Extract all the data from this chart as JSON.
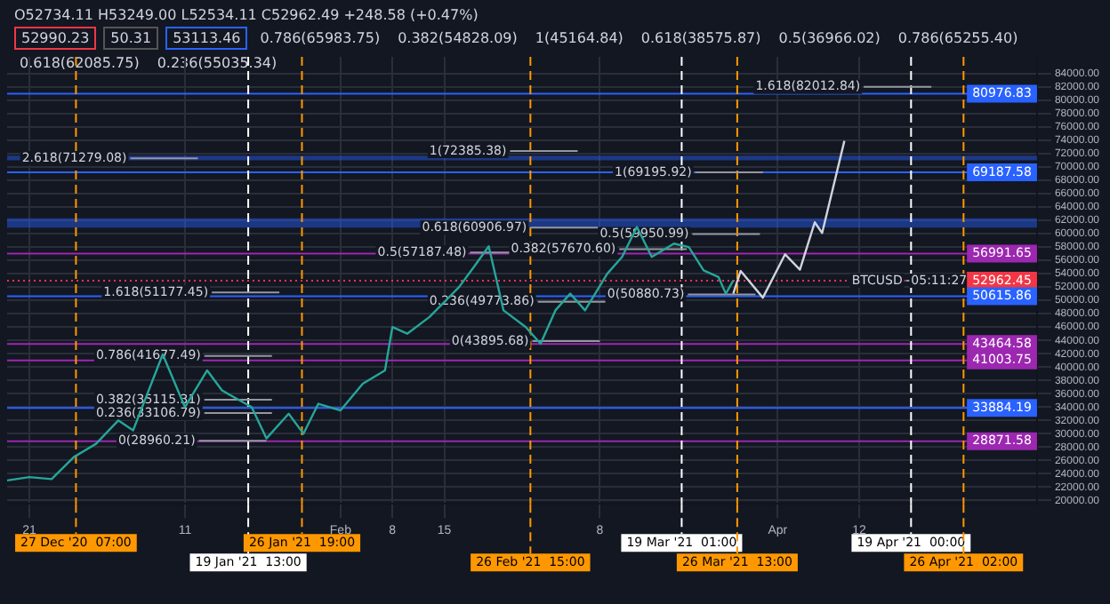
{
  "chart_data": {
    "type": "line",
    "subtitle": "O52734.11 H53249.00 L52534.11 C52962.49 +248.58 (+0.47%)",
    "xlim": [
      "2020-12-18",
      "2021-05-06"
    ],
    "xticks": [
      {
        "value": "2020-12-21",
        "label": "21"
      },
      {
        "value": "2021-01-11",
        "label": "11"
      },
      {
        "value": "2021-02-01",
        "label": "Feb"
      },
      {
        "value": "2021-02-08",
        "label": "8"
      },
      {
        "value": "2021-02-15",
        "label": "15"
      },
      {
        "value": "2021-03-08",
        "label": "8"
      },
      {
        "value": "2021-04-01",
        "label": "Apr"
      },
      {
        "value": "2021-04-12",
        "label": "12"
      }
    ],
    "ylim": [
      19500,
      86500
    ],
    "yticks": [
      {
        "value": 20000,
        "label": "20000.00"
      },
      {
        "value": 22000,
        "label": "22000.00"
      },
      {
        "value": 24000,
        "label": "24000.00"
      },
      {
        "value": 26000,
        "label": "26000.00"
      },
      {
        "value": 28000,
        "label": "28000.00"
      },
      {
        "value": 30000,
        "label": "30000.00"
      },
      {
        "value": 32000,
        "label": "32000.00"
      },
      {
        "value": 34000,
        "label": "34000.00"
      },
      {
        "value": 36000,
        "label": "36000.00"
      },
      {
        "value": 38000,
        "label": "38000.00"
      },
      {
        "value": 40000,
        "label": "40000.00"
      },
      {
        "value": 42000,
        "label": "42000.00"
      },
      {
        "value": 44000,
        "label": "44000.00"
      },
      {
        "value": 46000,
        "label": "46000.00"
      },
      {
        "value": 48000,
        "label": "48000.00"
      },
      {
        "value": 50000,
        "label": "50000.00"
      },
      {
        "value": 52000,
        "label": "52000.00"
      },
      {
        "value": 54000,
        "label": "54000.00"
      },
      {
        "value": 56000,
        "label": "56000.00"
      },
      {
        "value": 58000,
        "label": "58000.00"
      },
      {
        "value": 60000,
        "label": "60000.00"
      },
      {
        "value": 62000,
        "label": "62000.00"
      },
      {
        "value": 64000,
        "label": "64000.00"
      },
      {
        "value": 66000,
        "label": "66000.00"
      },
      {
        "value": 68000,
        "label": "68000.00"
      },
      {
        "value": 70000,
        "label": "70000.00"
      },
      {
        "value": 72000,
        "label": "72000.00"
      },
      {
        "value": 74000,
        "label": "74000.00"
      },
      {
        "value": 76000,
        "label": "76000.00"
      },
      {
        "value": 78000,
        "label": "78000.00"
      },
      {
        "value": 80000,
        "label": "80000.00"
      },
      {
        "value": 82000,
        "label": "82000.00"
      },
      {
        "value": 84000,
        "label": "84000.00"
      }
    ],
    "grid": true,
    "legend": false,
    "marker": "none",
    "series": [
      {
        "color": "#26a69a",
        "x": [
          "2020-12-18",
          "2020-12-21",
          "2020-12-24",
          "2020-12-27",
          "2020-12-30",
          "2021-01-02",
          "2021-01-04",
          "2021-01-08",
          "2021-01-11",
          "2021-01-14",
          "2021-01-16",
          "2021-01-20",
          "2021-01-22",
          "2021-01-25",
          "2021-01-27",
          "2021-01-29",
          "2021-02-01",
          "2021-02-04",
          "2021-02-07",
          "2021-02-08",
          "2021-02-10",
          "2021-02-13",
          "2021-02-17",
          "2021-02-19",
          "2021-02-21",
          "2021-02-23",
          "2021-02-26",
          "2021-02-28",
          "2021-03-02",
          "2021-03-04",
          "2021-03-06",
          "2021-03-09",
          "2021-03-11",
          "2021-03-13",
          "2021-03-15",
          "2021-03-18",
          "2021-03-20",
          "2021-03-22",
          "2021-03-24",
          "2021-03-25",
          "2021-03-26"
        ],
        "values": [
          23000,
          23500,
          23200,
          26500,
          28500,
          32000,
          30500,
          41900,
          34000,
          39500,
          36500,
          34000,
          29300,
          33000,
          30000,
          34500,
          33500,
          37500,
          39500,
          46000,
          45000,
          47500,
          52000,
          55000,
          58100,
          48500,
          46000,
          43500,
          48500,
          51000,
          48500,
          54000,
          56500,
          61000,
          56500,
          58500,
          58000,
          54500,
          53500,
          51000,
          52962.45
        ]
      },
      {
        "color": "#d1d4dc",
        "x": [
          "2021-03-26",
          "2021-03-27",
          "2021-03-30",
          "2021-04-02",
          "2021-04-04",
          "2021-04-06",
          "2021-04-07",
          "2021-04-10"
        ],
        "values": [
          51000,
          54400,
          50400,
          56900,
          54600,
          61700,
          60100,
          73900
        ]
      }
    ],
    "ref_lines": [
      {
        "axis": "y",
        "value": 80976.83,
        "label": "80976.83",
        "color": "#2962ff",
        "line_style": "solid"
      },
      {
        "axis": "y",
        "value": 69187.58,
        "label": "69187.58",
        "color": "#2962ff",
        "line_style": "solid"
      },
      {
        "axis": "y",
        "value": 56991.65,
        "label": "56991.65",
        "color": "#9c27b0",
        "line_style": "solid"
      },
      {
        "axis": "y",
        "value": 52962.45,
        "label": "52962.45",
        "color": "#f23645",
        "line_style": "dotted"
      },
      {
        "axis": "y",
        "value": 50615.86,
        "label": "50615.86",
        "color": "#2962ff",
        "line_style": "solid"
      },
      {
        "axis": "y",
        "value": 43464.58,
        "label": "43464.58",
        "color": "#9c27b0",
        "line_style": "solid"
      },
      {
        "axis": "y",
        "value": 41003.75,
        "label": "41003.75",
        "color": "#9c27b0",
        "line_style": "solid"
      },
      {
        "axis": "y",
        "value": 33884.19,
        "label": "33884.19",
        "color": "#2962ff",
        "line_style": "solid"
      },
      {
        "axis": "y",
        "value": 28871.58,
        "label": "28871.58",
        "color": "#9c27b0",
        "line_style": "solid"
      },
      {
        "axis": "x",
        "value": "2020-12-27T07:00",
        "label": "27 Dec '20  07:00",
        "color": "#ff9800",
        "line_style": "dashed"
      },
      {
        "axis": "x",
        "value": "2021-01-19T13:00",
        "label": "19 Jan '21  13:00",
        "color": "#ffffff",
        "line_style": "dashed"
      },
      {
        "axis": "x",
        "value": "2021-01-26T19:00",
        "label": "26 Jan '21  19:00",
        "color": "#ff9800",
        "line_style": "dashed"
      },
      {
        "axis": "x",
        "value": "2021-02-26T15:00",
        "label": "26 Feb '21  15:00",
        "color": "#ff9800",
        "line_style": "dashed"
      },
      {
        "axis": "x",
        "value": "2021-03-19T01:00",
        "label": "19 Mar '21  01:00",
        "color": "#ffffff",
        "line_style": "dashed"
      },
      {
        "axis": "x",
        "value": "2021-03-26T13:00",
        "label": "26 Mar '21  13:00",
        "color": "#ff9800",
        "line_style": "dashed"
      },
      {
        "axis": "x",
        "value": "2021-04-19T00:00",
        "label": "19 Apr '21  00:00",
        "color": "#ffffff",
        "line_style": "dashed"
      },
      {
        "axis": "x",
        "value": "2021-04-26T02:00",
        "label": "26 Apr '21  02:00",
        "color": "#ff9800",
        "line_style": "dashed"
      }
    ],
    "bands": [
      {
        "axis": "y",
        "from": 71000,
        "to": 71700,
        "color": "#2962ff"
      },
      {
        "axis": "y",
        "from": 60900,
        "to": 62300,
        "color": "#2962ff"
      }
    ],
    "annotations": [
      "52990.23",
      "50.31",
      "53113.46",
      {
        "text": "1.618(82012.84)",
        "x": "2021-03-29",
        "y": 82012.84
      },
      {
        "text": "2.618(71279.08)",
        "x": "2020-12-20",
        "y": 71279.08
      },
      {
        "text": "1(72385.38)",
        "x": "2021-02-13",
        "y": 72385.38
      },
      "0.786(65983.75)",
      {
        "text": "0.618(60906.97)",
        "x": "2021-02-12",
        "y": 60906.97
      },
      {
        "text": "0.5(57187.48)",
        "x": "2021-02-06",
        "y": 57187.48
      },
      "0.382(54828.09)",
      {
        "text": "0.236(49773.86)",
        "x": "2021-02-13",
        "y": 49773.86
      },
      {
        "text": "0(43895.68)",
        "x": "2021-02-16",
        "y": 43895.68
      },
      {
        "text": "1.618(51177.45)",
        "x": "2020-12-31",
        "y": 51177.45
      },
      "1(45164.84)",
      {
        "text": "0.786(41677.49)",
        "x": "2020-12-30",
        "y": 41677.49
      },
      "0.618(38575.87)",
      "0.5(36966.02)",
      {
        "text": "0.382(35115.31)",
        "x": "2020-12-30",
        "y": 35115.31
      },
      {
        "text": "0.236(33106.79)",
        "x": "2020-12-30",
        "y": 33106.79
      },
      {
        "text": "0(28960.21)",
        "x": "2021-01-02",
        "y": 28960.21
      },
      {
        "text": "1(69195.92)",
        "x": "2021-03-10",
        "y": 69195.92
      },
      "0.786(65255.40)",
      "0.618(62085.75)",
      {
        "text": "0.5(59950.99)",
        "x": "2021-03-08",
        "y": 59950.99
      },
      {
        "text": "0.382(57670.60)",
        "x": "2021-02-24",
        "y": 57670.6
      },
      "0.236(55035.34)",
      {
        "text": "0(50880.73)",
        "x": "2021-03-09",
        "y": 50880.73
      },
      {
        "text": "BTCUSD",
        "x": "2021-04-11",
        "y": 52962.45
      },
      {
        "text": "05:11:27",
        "x": "2021-04-19",
        "y": 52962.45
      }
    ]
  }
}
